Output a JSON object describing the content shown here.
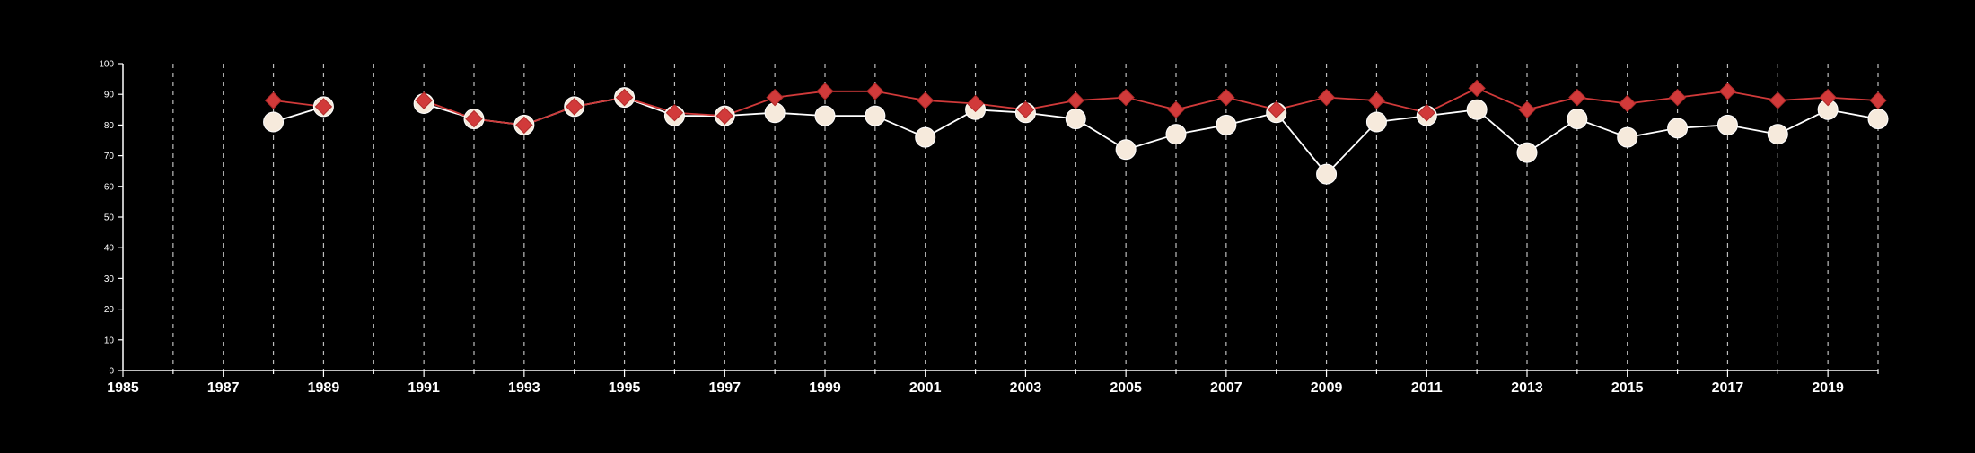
{
  "chart_data": {
    "type": "line",
    "title": "",
    "xlabel": "",
    "ylabel": "",
    "xlim": [
      1985,
      2020
    ],
    "ylim": [
      0,
      100
    ],
    "x_ticks": [
      "1985",
      "1987",
      "1989",
      "1991",
      "1993",
      "1995",
      "1997",
      "1999",
      "2001",
      "2003",
      "2005",
      "2007",
      "2009",
      "2011",
      "2013",
      "2015",
      "2017",
      "2019"
    ],
    "y_ticks": [
      "0",
      "10",
      "20",
      "30",
      "40",
      "50",
      "60",
      "70",
      "80",
      "90",
      "100"
    ],
    "vertical_gridlines": "dashed, every year",
    "legend": "none",
    "series": [
      {
        "marker": "diamond",
        "color": "#d13a3a",
        "points": [
          [
            1988,
            88
          ],
          [
            1989,
            86
          ],
          [
            1991,
            88
          ],
          [
            1992,
            82
          ],
          [
            1993,
            80
          ],
          [
            1994,
            86
          ],
          [
            1995,
            89
          ],
          [
            1996,
            84
          ],
          [
            1997,
            83
          ],
          [
            1998,
            89
          ],
          [
            1999,
            91
          ],
          [
            2000,
            91
          ],
          [
            2001,
            88
          ],
          [
            2002,
            87
          ],
          [
            2003,
            85
          ],
          [
            2004,
            88
          ],
          [
            2005,
            89
          ],
          [
            2006,
            85
          ],
          [
            2007,
            89
          ],
          [
            2008,
            85
          ],
          [
            2009,
            89
          ],
          [
            2010,
            88
          ],
          [
            2011,
            84
          ],
          [
            2012,
            92
          ],
          [
            2013,
            85
          ],
          [
            2014,
            89
          ],
          [
            2015,
            87
          ],
          [
            2016,
            89
          ],
          [
            2017,
            91
          ],
          [
            2018,
            88
          ],
          [
            2019,
            89
          ],
          [
            2020,
            88
          ]
        ]
      },
      {
        "marker": "circle",
        "color": "#f6eadc",
        "points": [
          [
            1988,
            81
          ],
          [
            1989,
            86
          ],
          [
            1991,
            87
          ],
          [
            1992,
            82
          ],
          [
            1993,
            80
          ],
          [
            1994,
            86
          ],
          [
            1995,
            89
          ],
          [
            1996,
            83
          ],
          [
            1997,
            83
          ],
          [
            1998,
            84
          ],
          [
            1999,
            83
          ],
          [
            2000,
            83
          ],
          [
            2001,
            76
          ],
          [
            2002,
            85
          ],
          [
            2003,
            84
          ],
          [
            2004,
            82
          ],
          [
            2005,
            72
          ],
          [
            2006,
            77
          ],
          [
            2007,
            80
          ],
          [
            2008,
            84
          ],
          [
            2009,
            64
          ],
          [
            2010,
            81
          ],
          [
            2011,
            83
          ],
          [
            2012,
            85
          ],
          [
            2013,
            71
          ],
          [
            2014,
            82
          ],
          [
            2015,
            76
          ],
          [
            2016,
            79
          ],
          [
            2017,
            80
          ],
          [
            2018,
            77
          ],
          [
            2019,
            85
          ],
          [
            2020,
            82
          ]
        ]
      }
    ]
  }
}
